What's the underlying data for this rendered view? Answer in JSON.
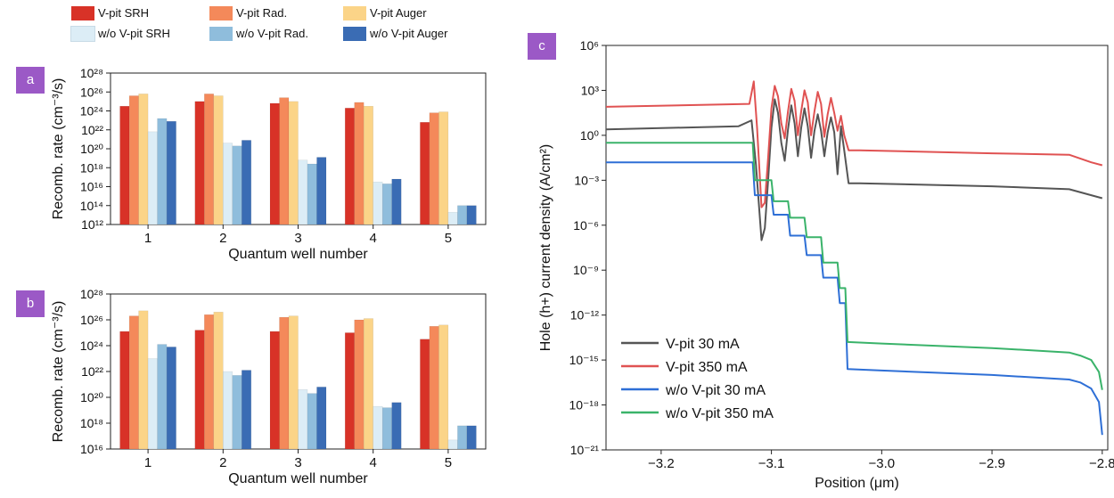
{
  "panel_labels": [
    "a",
    "b",
    "c"
  ],
  "bar_series": [
    {
      "name": "V-pit SRH",
      "color": "#d83227"
    },
    {
      "name": "V-pit Rad.",
      "color": "#f4895a"
    },
    {
      "name": "V-pit Auger",
      "color": "#fbd488"
    },
    {
      "name": "w/o V-pit SRH",
      "color": "#dcedf6"
    },
    {
      "name": "w/o V-pit Rad.",
      "color": "#8fbddc"
    },
    {
      "name": "w/o V-pit Auger",
      "color": "#3a6cb4"
    }
  ],
  "chart_data": [
    {
      "panel": "a",
      "type": "bar",
      "xlabel": "Quantum well number",
      "ylabel": "Recomb. rate (cm⁻³/s)",
      "yscale": "log",
      "ylim_exp": [
        12,
        28
      ],
      "ytick_exps": [
        12,
        14,
        16,
        18,
        20,
        22,
        24,
        26,
        28
      ],
      "categories": [
        "1",
        "2",
        "3",
        "4",
        "5"
      ],
      "series": [
        {
          "name": "V-pit SRH",
          "log10_values": [
            24.5,
            25.0,
            24.8,
            24.3,
            22.8
          ]
        },
        {
          "name": "V-pit Rad.",
          "log10_values": [
            25.6,
            25.8,
            25.4,
            24.9,
            23.8
          ]
        },
        {
          "name": "V-pit Auger",
          "log10_values": [
            25.8,
            25.6,
            25.0,
            24.5,
            23.9
          ]
        },
        {
          "name": "w/o V-pit SRH",
          "log10_values": [
            21.8,
            20.6,
            18.8,
            16.5,
            13.3
          ]
        },
        {
          "name": "w/o V-pit Rad.",
          "log10_values": [
            23.2,
            20.3,
            18.4,
            16.3,
            14.0
          ]
        },
        {
          "name": "w/o V-pit Auger",
          "log10_values": [
            22.9,
            20.9,
            19.1,
            16.8,
            14.0
          ]
        }
      ]
    },
    {
      "panel": "b",
      "type": "bar",
      "xlabel": "Quantum well number",
      "ylabel": "Recomb. rate (cm⁻³/s)",
      "yscale": "log",
      "ylim_exp": [
        16,
        28
      ],
      "ytick_exps": [
        16,
        18,
        20,
        22,
        24,
        26,
        28
      ],
      "categories": [
        "1",
        "2",
        "3",
        "4",
        "5"
      ],
      "series": [
        {
          "name": "V-pit SRH",
          "log10_values": [
            25.1,
            25.2,
            25.1,
            25.0,
            24.5
          ]
        },
        {
          "name": "V-pit Rad.",
          "log10_values": [
            26.3,
            26.4,
            26.2,
            26.0,
            25.5
          ]
        },
        {
          "name": "V-pit Auger",
          "log10_values": [
            26.7,
            26.6,
            26.3,
            26.1,
            25.6
          ]
        },
        {
          "name": "w/o V-pit SRH",
          "log10_values": [
            23.0,
            22.0,
            20.6,
            19.3,
            16.7
          ]
        },
        {
          "name": "w/o V-pit Rad.",
          "log10_values": [
            24.1,
            21.7,
            20.3,
            19.2,
            17.8
          ]
        },
        {
          "name": "w/o V-pit Auger",
          "log10_values": [
            23.9,
            22.1,
            20.8,
            19.6,
            17.8
          ]
        }
      ]
    },
    {
      "panel": "c",
      "type": "line",
      "xlabel": "Position (μm)",
      "ylabel": "Hole (h+) current density (A/cm²)",
      "yscale": "log",
      "xlim": [
        -3.25,
        -2.795
      ],
      "ylim_exp": [
        -21,
        6
      ],
      "xticks": [
        -3.2,
        -3.1,
        -3.0,
        -2.9,
        -2.8
      ],
      "xtick_labels": [
        "−3.2",
        "−3.1",
        "−3.0",
        "−2.9",
        "−2.8"
      ],
      "ytick_exps": [
        -21,
        -18,
        -15,
        -12,
        -9,
        -6,
        -3,
        0,
        3,
        6
      ],
      "legend_position": "bottom-left",
      "series": [
        {
          "name": "V-pit 30 mA",
          "color": "#555555",
          "x": [
            -3.25,
            -3.13,
            -3.118,
            -3.114,
            -3.109,
            -3.106,
            -3.103,
            -3.1,
            -3.097,
            -3.094,
            -3.091,
            -3.088,
            -3.085,
            -3.082,
            -3.079,
            -3.076,
            -3.073,
            -3.07,
            -3.067,
            -3.064,
            -3.061,
            -3.058,
            -3.055,
            -3.052,
            -3.049,
            -3.046,
            -3.043,
            -3.04,
            -3.037,
            -3.034,
            -3.03,
            -3.02,
            -2.9,
            -2.83,
            -2.81,
            -2.8
          ],
          "log10_y": [
            0.4,
            0.6,
            1.0,
            -2.0,
            -7.0,
            -6.2,
            -3.0,
            0.5,
            2.4,
            1.5,
            -0.5,
            -1.7,
            0.4,
            2.0,
            0.8,
            -1.4,
            0.5,
            1.8,
            0.6,
            -1.5,
            0.3,
            1.4,
            0.3,
            -1.4,
            0.2,
            1.2,
            0.2,
            -2.6,
            0.6,
            -1.0,
            -3.2,
            -3.2,
            -3.4,
            -3.6,
            -4.0,
            -4.2
          ]
        },
        {
          "name": "V-pit 350 mA",
          "color": "#e05252",
          "x": [
            -3.25,
            -3.12,
            -3.116,
            -3.113,
            -3.109,
            -3.106,
            -3.103,
            -3.1,
            -3.097,
            -3.094,
            -3.091,
            -3.088,
            -3.085,
            -3.082,
            -3.079,
            -3.076,
            -3.073,
            -3.07,
            -3.067,
            -3.064,
            -3.061,
            -3.058,
            -3.055,
            -3.052,
            -3.049,
            -3.046,
            -3.043,
            -3.04,
            -3.037,
            -3.034,
            -3.03,
            -3.02,
            -2.9,
            -2.83,
            -2.81,
            -2.8
          ],
          "log10_y": [
            1.9,
            2.1,
            3.6,
            0.5,
            -4.8,
            -4.5,
            -1.5,
            1.8,
            3.3,
            2.6,
            0.8,
            -0.2,
            1.6,
            3.1,
            2.3,
            0.0,
            1.6,
            3.0,
            2.2,
            0.0,
            1.6,
            2.9,
            2.1,
            -0.1,
            1.4,
            2.5,
            1.5,
            0.3,
            1.3,
            0.0,
            -1.0,
            -1.0,
            -1.2,
            -1.3,
            -1.8,
            -2.0
          ]
        },
        {
          "name": "w/o V-pit 30 mA",
          "color": "#2e6fd6",
          "x": [
            -3.25,
            -3.117,
            -3.115,
            -3.1,
            -3.098,
            -3.085,
            -3.083,
            -3.07,
            -3.068,
            -3.055,
            -3.053,
            -3.04,
            -3.038,
            -3.033,
            -3.031,
            -3.0,
            -2.9,
            -2.83,
            -2.82,
            -2.81,
            -2.803,
            -2.8
          ],
          "log10_y": [
            -1.8,
            -1.8,
            -4.0,
            -4.0,
            -5.3,
            -5.3,
            -6.7,
            -6.7,
            -8.0,
            -8.0,
            -9.5,
            -9.5,
            -11.2,
            -11.2,
            -15.6,
            -15.7,
            -16.0,
            -16.3,
            -16.5,
            -16.9,
            -17.8,
            -20.0
          ]
        },
        {
          "name": "w/o V-pit 350 mA",
          "color": "#3ab36a",
          "x": [
            -3.25,
            -3.117,
            -3.115,
            -3.1,
            -3.098,
            -3.085,
            -3.083,
            -3.07,
            -3.068,
            -3.055,
            -3.053,
            -3.04,
            -3.038,
            -3.033,
            -3.031,
            -3.0,
            -2.9,
            -2.83,
            -2.82,
            -2.81,
            -2.803,
            -2.8
          ],
          "log10_y": [
            -0.5,
            -0.5,
            -3.0,
            -3.0,
            -4.4,
            -4.4,
            -5.5,
            -5.5,
            -6.8,
            -6.8,
            -8.5,
            -8.5,
            -10.2,
            -10.2,
            -13.8,
            -13.9,
            -14.2,
            -14.5,
            -14.7,
            -15.0,
            -15.8,
            -17.0
          ]
        }
      ]
    }
  ]
}
